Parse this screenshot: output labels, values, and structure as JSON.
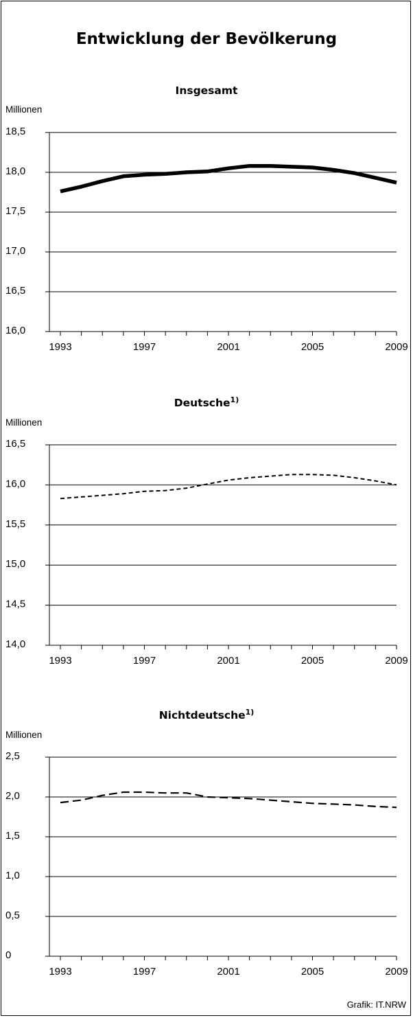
{
  "title": "Entwicklung der Bevölkerung",
  "credit": "Grafik: IT.NRW",
  "chart_data": [
    {
      "type": "line",
      "title": "Insgesamt",
      "title_sup": "",
      "ylabel": "Millionen",
      "ylim": [
        16.0,
        18.5
      ],
      "yticks": [
        16.0,
        16.5,
        17.0,
        17.5,
        18.0,
        18.5
      ],
      "ytick_labels": [
        "16,0",
        "16,5",
        "17,0",
        "17,5",
        "18,0",
        "18,5"
      ],
      "xlim": [
        1993,
        2009
      ],
      "xtick_labels": [
        "1993",
        "1997",
        "2001",
        "2005",
        "2009"
      ],
      "grid": true,
      "line_style": "solid-thick",
      "x": [
        1993,
        1994,
        1995,
        1996,
        1997,
        1998,
        1999,
        2000,
        2001,
        2002,
        2003,
        2004,
        2005,
        2006,
        2007,
        2008,
        2009
      ],
      "values": [
        17.76,
        17.82,
        17.89,
        17.95,
        17.97,
        17.98,
        18.0,
        18.01,
        18.05,
        18.08,
        18.08,
        18.07,
        18.06,
        18.03,
        17.99,
        17.93,
        17.87
      ]
    },
    {
      "type": "line",
      "title": "Deutsche",
      "title_sup": "1)",
      "ylabel": "Millionen",
      "ylim": [
        14.0,
        16.5
      ],
      "yticks": [
        14.0,
        14.5,
        15.0,
        15.5,
        16.0,
        16.5
      ],
      "ytick_labels": [
        "14,0",
        "14,5",
        "15,0",
        "15,5",
        "16,0",
        "16,5"
      ],
      "xlim": [
        1993,
        2009
      ],
      "xtick_labels": [
        "1993",
        "1997",
        "2001",
        "2005",
        "2009"
      ],
      "grid": true,
      "line_style": "dashed-short",
      "x": [
        1993,
        1994,
        1995,
        1996,
        1997,
        1998,
        1999,
        2000,
        2001,
        2002,
        2003,
        2004,
        2005,
        2006,
        2007,
        2008,
        2009
      ],
      "values": [
        15.83,
        15.85,
        15.87,
        15.89,
        15.92,
        15.93,
        15.96,
        16.01,
        16.06,
        16.09,
        16.11,
        16.13,
        16.13,
        16.12,
        16.09,
        16.05,
        16.0
      ]
    },
    {
      "type": "line",
      "title": "Nichtdeutsche",
      "title_sup": "1)",
      "ylabel": "Millionen",
      "ylim": [
        0,
        2.5
      ],
      "yticks": [
        0,
        0.5,
        1.0,
        1.5,
        2.0,
        2.5
      ],
      "ytick_labels": [
        "0",
        "0,5",
        "1,0",
        "1,5",
        "2,0",
        "2,5"
      ],
      "xlim": [
        1993,
        2009
      ],
      "xtick_labels": [
        "1993",
        "1997",
        "2001",
        "2005",
        "2009"
      ],
      "grid": true,
      "line_style": "dashed-long",
      "x": [
        1993,
        1994,
        1995,
        1996,
        1997,
        1998,
        1999,
        2000,
        2001,
        2002,
        2003,
        2004,
        2005,
        2006,
        2007,
        2008,
        2009
      ],
      "values": [
        1.93,
        1.96,
        2.02,
        2.06,
        2.06,
        2.05,
        2.05,
        2.0,
        1.99,
        1.98,
        1.96,
        1.94,
        1.92,
        1.91,
        1.9,
        1.88,
        1.87
      ]
    }
  ]
}
